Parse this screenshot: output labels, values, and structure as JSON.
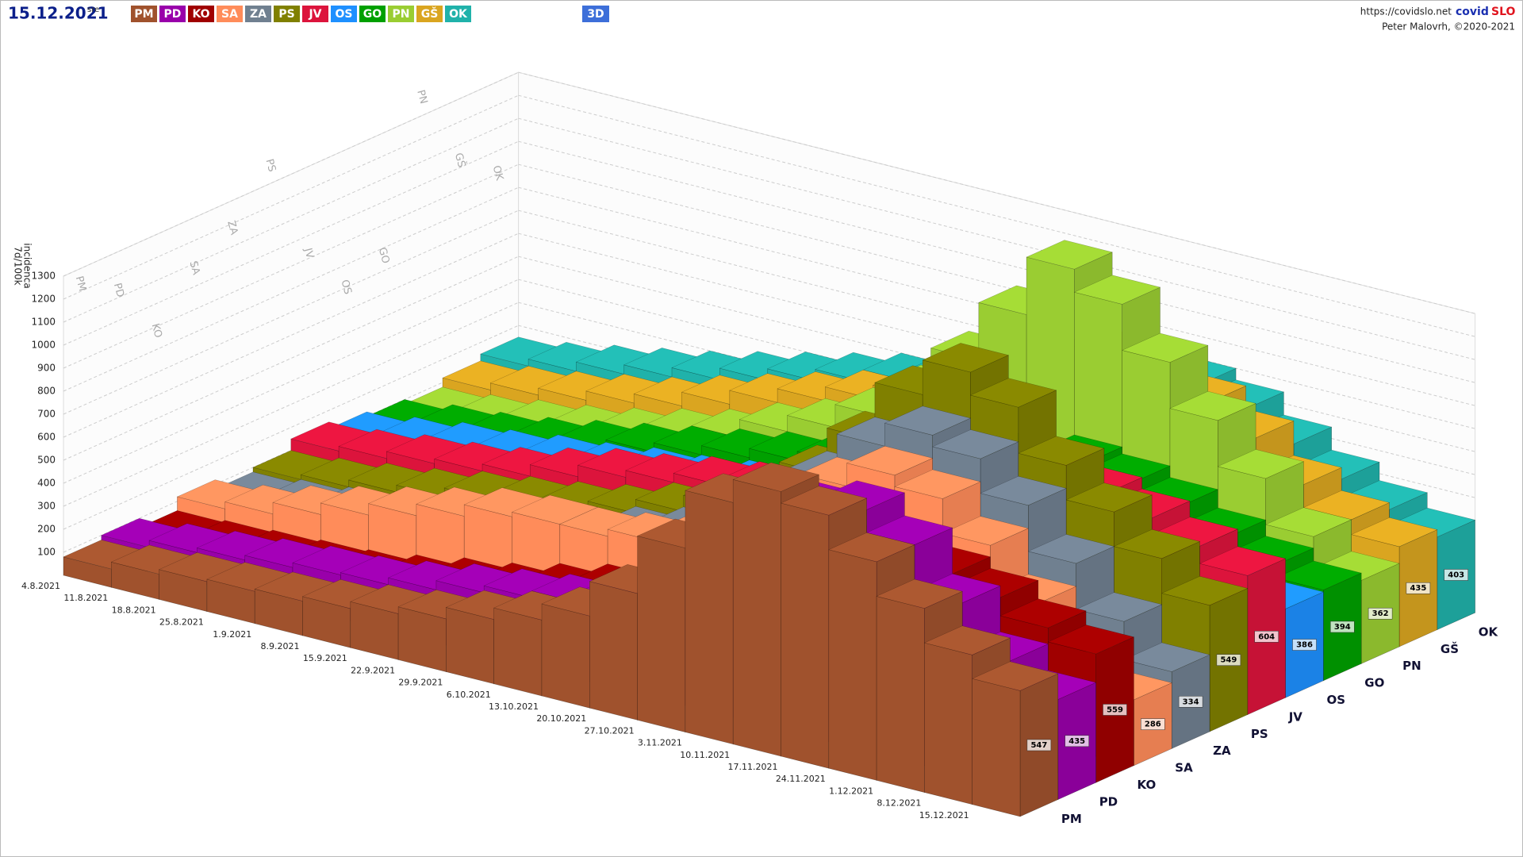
{
  "header": {
    "date": "15.12.2021",
    "weekday": "sre",
    "mode": "3D",
    "url": "https://covidslo.net",
    "brand": [
      "covid",
      "SLO"
    ],
    "author": "Peter Malovrh, ©2020-2021"
  },
  "chart_data": {
    "type": "bar3d",
    "y_label": [
      "7d/100k",
      "incidenca"
    ],
    "categories": [
      "4.8.2021",
      "11.8.2021",
      "18.8.2021",
      "25.8.2021",
      "1.9.2021",
      "8.9.2021",
      "15.9.2021",
      "22.9.2021",
      "29.9.2021",
      "6.10.2021",
      "13.10.2021",
      "20.10.2021",
      "27.10.2021",
      "3.11.2021",
      "10.11.2021",
      "17.11.2021",
      "24.11.2021",
      "1.12.2021",
      "8.12.2021",
      "15.12.2021"
    ],
    "ylim": [
      0,
      1300
    ],
    "yticks": [
      100,
      200,
      300,
      400,
      500,
      600,
      700,
      800,
      900,
      1000,
      1100,
      1200,
      1300
    ],
    "grid": true,
    "series": [
      {
        "name": "PM",
        "color": "#a0522d",
        "values": [
          80,
          110,
          130,
          140,
          150,
          170,
          200,
          230,
          280,
          330,
          400,
          550,
          800,
          1050,
          1150,
          1100,
          950,
          800,
          650,
          547
        ]
      },
      {
        "name": "PD",
        "color": "#9900aa",
        "values": [
          100,
          130,
          150,
          170,
          190,
          200,
          230,
          270,
          300,
          330,
          380,
          450,
          600,
          850,
          1000,
          1050,
          950,
          750,
          550,
          435
        ]
      },
      {
        "name": "KO",
        "color": "#a00000",
        "values": [
          60,
          70,
          80,
          90,
          100,
          130,
          170,
          200,
          250,
          300,
          350,
          400,
          500,
          650,
          750,
          800,
          750,
          700,
          620,
          559
        ]
      },
      {
        "name": "SA",
        "color": "#ff8c5a",
        "values": [
          120,
          150,
          200,
          250,
          300,
          350,
          400,
          420,
          420,
          450,
          500,
          600,
          750,
          900,
          1000,
          950,
          800,
          600,
          400,
          286
        ]
      },
      {
        "name": "ZA",
        "color": "#708090",
        "values": [
          80,
          100,
          120,
          140,
          160,
          200,
          250,
          300,
          350,
          400,
          500,
          650,
          800,
          1000,
          1100,
          1050,
          900,
          700,
          500,
          334
        ]
      },
      {
        "name": "PS",
        "color": "#808000",
        "values": [
          100,
          120,
          150,
          180,
          220,
          250,
          280,
          320,
          380,
          450,
          550,
          700,
          900,
          1150,
          1300,
          1200,
          1000,
          850,
          700,
          549
        ]
      },
      {
        "name": "JV",
        "color": "#dc143c",
        "values": [
          150,
          170,
          200,
          220,
          250,
          300,
          350,
          380,
          420,
          450,
          500,
          550,
          650,
          750,
          800,
          850,
          800,
          750,
          680,
          604
        ]
      },
      {
        "name": "OS",
        "color": "#1e90ff",
        "values": [
          120,
          150,
          180,
          200,
          230,
          250,
          280,
          300,
          330,
          380,
          420,
          480,
          550,
          600,
          620,
          600,
          550,
          480,
          430,
          386
        ]
      },
      {
        "name": "GO",
        "color": "#00a000",
        "values": [
          100,
          130,
          150,
          180,
          220,
          260,
          300,
          340,
          380,
          420,
          480,
          550,
          600,
          650,
          680,
          650,
          600,
          520,
          450,
          394
        ]
      },
      {
        "name": "PN",
        "color": "#9acd32",
        "values": [
          80,
          100,
          130,
          160,
          200,
          250,
          300,
          380,
          450,
          550,
          700,
          900,
          1150,
          1400,
          1300,
          1100,
          900,
          700,
          500,
          362
        ]
      },
      {
        "name": "GŠ",
        "color": "#daa520",
        "values": [
          120,
          150,
          180,
          220,
          260,
          320,
          380,
          440,
          500,
          560,
          650,
          750,
          850,
          950,
          900,
          850,
          750,
          600,
          500,
          435
        ]
      },
      {
        "name": "OK",
        "color": "#20b2aa",
        "values": [
          150,
          180,
          220,
          260,
          300,
          350,
          400,
          450,
          500,
          560,
          620,
          700,
          780,
          820,
          800,
          750,
          650,
          550,
          470,
          403
        ]
      }
    ]
  }
}
